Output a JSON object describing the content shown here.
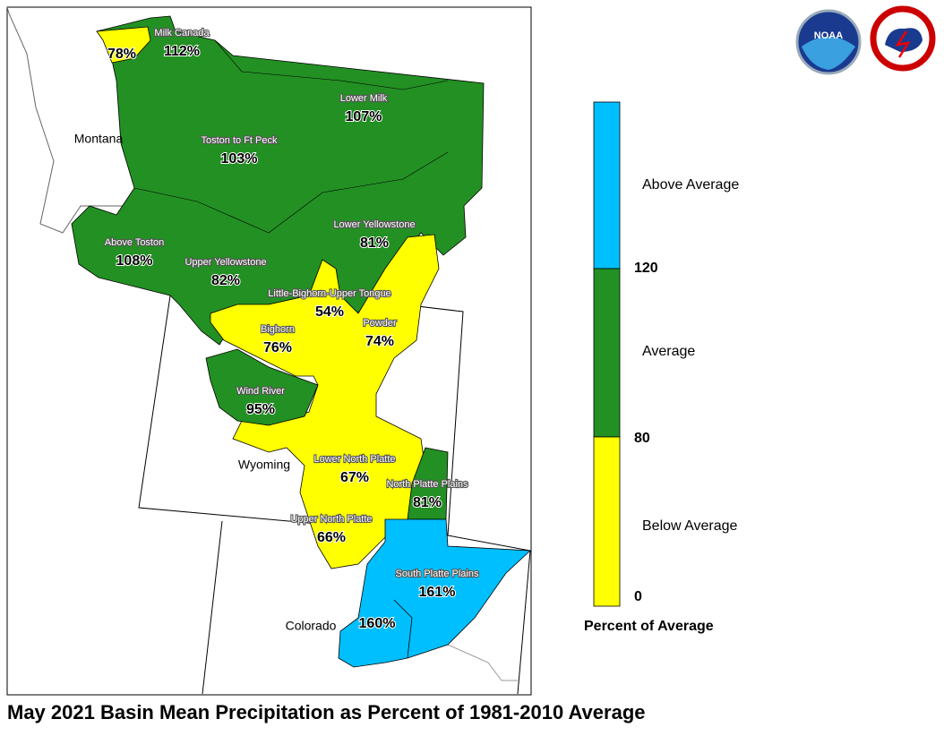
{
  "title": "May 2021 Basin Mean Precipitation as Percent of 1981-2010 Average",
  "logos": {
    "noaa": "NOAA"
  },
  "states": [
    "Montana",
    "Wyoming",
    "Colorado"
  ],
  "basins": [
    {
      "name": "Milk Canada",
      "label": "112%"
    },
    {
      "label": "78%"
    },
    {
      "name": "Lower Milk",
      "label": "107%"
    },
    {
      "name": "Toston to Ft Peck",
      "label": "103%"
    },
    {
      "name": "Above Toston",
      "label": "108%"
    },
    {
      "name": "Lower Yellowstone",
      "label": "81%"
    },
    {
      "name": "Upper Yellowstone",
      "label": "82%"
    },
    {
      "name": "Little-Bighorn-Upper Tongue",
      "label": "54%"
    },
    {
      "name": "Bighorn",
      "label": "76%"
    },
    {
      "name": "Powder",
      "label": "74%"
    },
    {
      "name": "Wind River",
      "label": "95%"
    },
    {
      "name": "Lower North Platte",
      "label": "67%"
    },
    {
      "name": "North Platte Plains",
      "label": "81%"
    },
    {
      "name": "Upper North Platte",
      "label": "66%"
    },
    {
      "name": "South Platte Plains",
      "label": "161%"
    },
    {
      "label": "160%"
    }
  ],
  "legend": {
    "title": "Percent of Average",
    "classes": [
      "Above Average",
      "Average",
      "Below Average"
    ],
    "ticks": [
      "120",
      "80",
      "0"
    ]
  }
}
